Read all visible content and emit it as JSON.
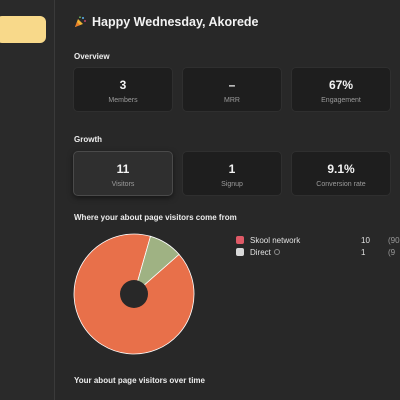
{
  "greeting": {
    "text": "Happy Wednesday, Akorede",
    "icon": "party-popper-icon"
  },
  "overview": {
    "label": "Overview",
    "cards": [
      {
        "value": "3",
        "label": "Members"
      },
      {
        "value": "–",
        "label": "MRR"
      },
      {
        "value": "67%",
        "label": "Engagement"
      }
    ]
  },
  "growth": {
    "label": "Growth",
    "cards": [
      {
        "value": "11",
        "label": "Visitors",
        "selected": true
      },
      {
        "value": "1",
        "label": "Signup"
      },
      {
        "value": "9.1%",
        "label": "Conversion rate"
      }
    ]
  },
  "sources": {
    "label": "Where your about page visitors come from",
    "items": [
      {
        "name": "Skool network",
        "count": "10",
        "pct": "(90",
        "color": "#e8704a",
        "icon": "skool-icon"
      },
      {
        "name": "Direct",
        "count": "1",
        "pct": "(9",
        "color": "#9fb283",
        "icon": "direct-icon"
      }
    ]
  },
  "over_time": {
    "label": "Your about page visitors over time"
  },
  "chart_data": {
    "type": "pie",
    "labels": [
      "Skool network",
      "Direct"
    ],
    "values": [
      10,
      1
    ],
    "colors": [
      "#e8704a",
      "#9fb283"
    ]
  },
  "colors": {
    "accent": "#f8d98a",
    "card_bg": "#1e1e1e",
    "page_bg": "#282828"
  }
}
